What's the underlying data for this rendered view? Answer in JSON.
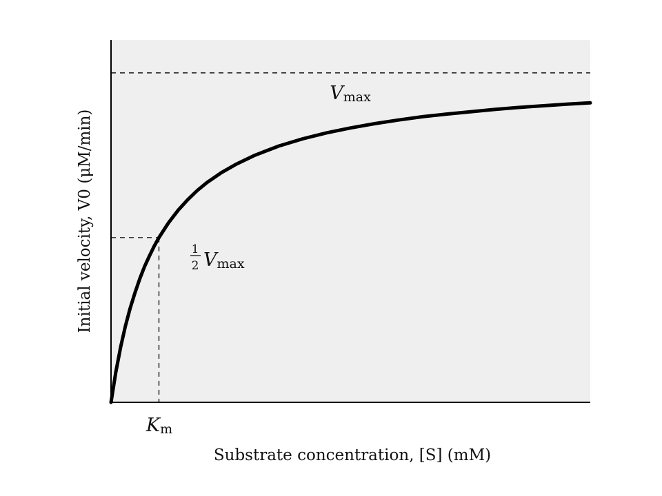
{
  "chart_data": {
    "type": "line",
    "title": "",
    "xlabel": "Substrate concentration, [S] (mM)",
    "ylabel": "Initial velocity, V0 (μM/min)",
    "x_unit": "mM",
    "y_unit": "μM/min",
    "grid": false,
    "legend": "none",
    "background_color": "#efefef",
    "line_color": "#000000",
    "xlim": [
      0,
      10
    ],
    "ylim": [
      0,
      1.1
    ],
    "series": [
      {
        "x": [
          0,
          0.1,
          0.2,
          0.3,
          0.4,
          0.5,
          0.6,
          0.7,
          0.8,
          0.9,
          1.0,
          1.2,
          1.4,
          1.6,
          1.8,
          2.0,
          2.3,
          2.6,
          3.0,
          3.5,
          4.0,
          4.5,
          5.0,
          5.5,
          6.0,
          6.5,
          7.0,
          7.5,
          8.0,
          8.5,
          9.0,
          9.5,
          10.0
        ],
        "values": [
          0,
          0.091,
          0.167,
          0.231,
          0.286,
          0.333,
          0.375,
          0.412,
          0.444,
          0.474,
          0.5,
          0.545,
          0.583,
          0.615,
          0.643,
          0.667,
          0.697,
          0.722,
          0.75,
          0.778,
          0.8,
          0.818,
          0.833,
          0.846,
          0.857,
          0.867,
          0.875,
          0.882,
          0.889,
          0.895,
          0.9,
          0.905,
          0.909
        ]
      }
    ],
    "reference_lines": {
      "vmax": {
        "value": 1.0,
        "label_main": "V",
        "label_sub": "max"
      },
      "half_vmax": {
        "value": 0.5,
        "label_frac_num": "1",
        "label_frac_den": "2",
        "label_main": "V",
        "label_sub": "max"
      },
      "km": {
        "value": 1.0,
        "label_main": "K",
        "label_sub": "m"
      }
    }
  }
}
